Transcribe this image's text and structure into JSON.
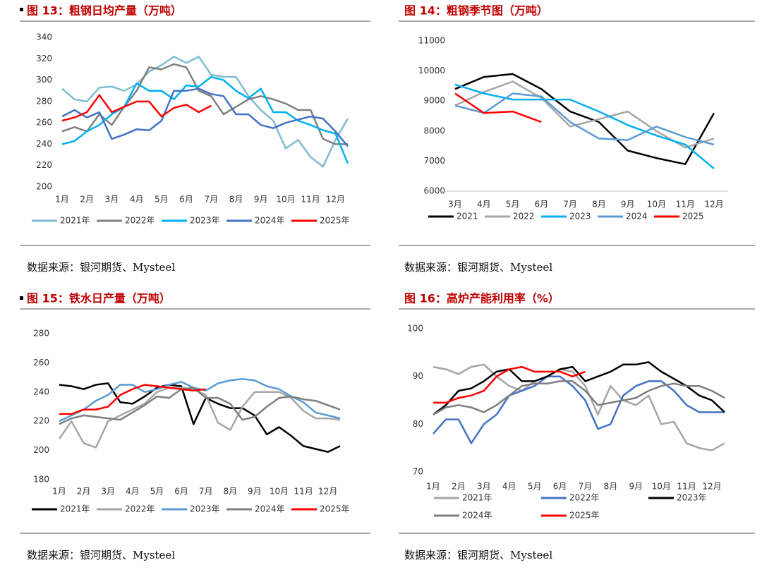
{
  "chart_data": [
    {
      "type": "line",
      "title": "图 13：粗钢日均产量（万吨）",
      "source": "数据来源：银河期货、Mysteel",
      "categories": [
        "1月",
        null,
        "2月",
        null,
        "3月",
        null,
        "4月",
        null,
        "5月",
        null,
        "6月",
        null,
        "7月",
        null,
        "8月",
        null,
        "9月",
        null,
        "10月",
        null,
        "11月",
        null,
        "12月",
        null
      ],
      "ylim": [
        200,
        340
      ],
      "yticks": [
        200,
        220,
        240,
        260,
        280,
        300,
        320,
        340
      ],
      "series": [
        {
          "name": "2021年",
          "color": "#7fbcd2",
          "values": [
            292,
            282,
            280,
            293,
            294,
            290,
            296,
            308,
            314,
            322,
            316,
            322,
            305,
            303,
            303,
            285,
            272,
            262,
            236,
            244,
            228,
            219,
            244,
            264
          ]
        },
        {
          "name": "2022年",
          "color": "#808080",
          "values": [
            252,
            256,
            252,
            268,
            258,
            275,
            290,
            312,
            310,
            315,
            312,
            290,
            285,
            268,
            275,
            282,
            285,
            282,
            278,
            272,
            272,
            245,
            240,
            240
          ]
        },
        {
          "name": "2023年",
          "color": "#00b0f0",
          "values": [
            240,
            243,
            252,
            258,
            268,
            275,
            297,
            290,
            290,
            282,
            295,
            294,
            303,
            300,
            290,
            283,
            292,
            270,
            270,
            262,
            258,
            253,
            250,
            222
          ]
        },
        {
          "name": "2024年",
          "color": "#4472c4",
          "values": [
            266,
            272,
            265,
            270,
            245,
            249,
            254,
            253,
            262,
            290,
            290,
            292,
            287,
            285,
            268,
            268,
            258,
            255,
            260,
            263,
            266,
            264,
            252,
            238
          ]
        },
        {
          "name": "2025年",
          "color": "#ff0000",
          "values": [
            262,
            265,
            270,
            286,
            270,
            275,
            280,
            280,
            266,
            274,
            277,
            270,
            276,
            null,
            null,
            null,
            null,
            null,
            null,
            null,
            null,
            null,
            null,
            null
          ]
        }
      ]
    },
    {
      "type": "line",
      "title": "图 14：粗钢季节图（万吨）",
      "source": "数据来源：银河期货、Mysteel",
      "categories": [
        "3月",
        "4月",
        "5月",
        "6月",
        "7月",
        "8月",
        "9月",
        "10月",
        "11月",
        "12月"
      ],
      "ylim": [
        6000,
        11000
      ],
      "yticks": [
        6000,
        7000,
        8000,
        9000,
        10000,
        11000
      ],
      "x_axis_line": true,
      "series": [
        {
          "name": "2021",
          "color": "#000000",
          "values": [
            9400,
            9800,
            9900,
            9400,
            8650,
            8300,
            7350,
            7100,
            6900,
            8600
          ]
        },
        {
          "name": "2022",
          "color": "#a6a6a6",
          "values": [
            8850,
            9300,
            9650,
            9100,
            8150,
            8400,
            8650,
            8000,
            7450,
            7750
          ]
        },
        {
          "name": "2023",
          "color": "#00b0f0",
          "values": [
            9550,
            9250,
            9050,
            9050,
            9050,
            8650,
            8200,
            7850,
            7550,
            6750
          ]
        },
        {
          "name": "2024",
          "color": "#5b9bd5",
          "values": [
            8850,
            8600,
            9250,
            9150,
            8300,
            7750,
            7700,
            8150,
            7800,
            7550
          ]
        },
        {
          "name": "2025",
          "color": "#ff0000",
          "values": [
            9250,
            8600,
            8650,
            8300,
            null,
            null,
            null,
            null,
            null,
            null
          ]
        }
      ]
    },
    {
      "type": "line",
      "title": "图 15：铁水日产量（万吨）",
      "source": "数据来源：银河期货、Mysteel",
      "categories": [
        "1月",
        null,
        "2月",
        null,
        "3月",
        null,
        "4月",
        null,
        "5月",
        null,
        "6月",
        null,
        "7月",
        null,
        "8月",
        null,
        "9月",
        null,
        "10月",
        null,
        "11月",
        null,
        "12月",
        null
      ],
      "ylim": [
        180,
        280
      ],
      "yticks": [
        180,
        200,
        220,
        240,
        260,
        280
      ],
      "series": [
        {
          "name": "2021年",
          "color": "#000000",
          "values": [
            245,
            244,
            242,
            245,
            246,
            233,
            232,
            237,
            243,
            245,
            244,
            218,
            236,
            232,
            229,
            229,
            224,
            211,
            216,
            210,
            203,
            201,
            199,
            203
          ]
        },
        {
          "name": "2022年",
          "color": "#a6a6a6",
          "values": [
            208,
            220,
            205,
            202,
            220,
            224,
            228,
            232,
            240,
            243,
            243,
            242,
            238,
            219,
            214,
            230,
            240,
            240,
            240,
            236,
            227,
            222,
            222,
            221
          ]
        },
        {
          "name": "2023年",
          "color": "#5b9bd5",
          "values": [
            220,
            224,
            228,
            234,
            238,
            245,
            245,
            240,
            242,
            245,
            247,
            243,
            241,
            246,
            248,
            249,
            248,
            244,
            242,
            237,
            233,
            226,
            224,
            222
          ]
        },
        {
          "name": "2024年",
          "color": "#7f7f7f",
          "values": [
            218,
            222,
            224,
            223,
            222,
            221,
            226,
            231,
            237,
            236,
            242,
            243,
            236,
            236,
            232,
            221,
            223,
            230,
            236,
            237,
            235,
            234,
            231,
            228
          ]
        },
        {
          "name": "2025年",
          "color": "#ff0000",
          "values": [
            225,
            225,
            228,
            228,
            230,
            238,
            242,
            245,
            244,
            243,
            242,
            241,
            242,
            null,
            null,
            null,
            null,
            null,
            null,
            null,
            null,
            null,
            null,
            null
          ]
        }
      ]
    },
    {
      "type": "line",
      "title": "图 16：高炉产能利用率（%）",
      "source": "数据来源：银河期货、Mysteel",
      "categories": [
        "1月",
        null,
        "2月",
        null,
        "3月",
        null,
        "4月",
        null,
        "5月",
        null,
        "6月",
        null,
        "7月",
        null,
        "8月",
        null,
        "9月",
        null,
        "10月",
        null,
        "11月",
        null,
        "12月",
        null
      ],
      "ylim": [
        70,
        100
      ],
      "yticks": [
        70,
        80,
        90,
        100
      ],
      "series": [
        {
          "name": "2021年",
          "color": "#a6a6a6",
          "values": [
            92,
            91.5,
            90.5,
            92,
            92.5,
            90,
            88,
            87,
            89,
            90,
            91.5,
            91,
            88,
            82,
            88,
            85,
            84,
            86,
            80,
            80.5,
            76,
            75,
            74.5,
            76
          ]
        },
        {
          "name": "2022年",
          "color": "#4472c4",
          "values": [
            78,
            81,
            81,
            76,
            80,
            82,
            86,
            87,
            88,
            90,
            90,
            88,
            85,
            79,
            80,
            86,
            88,
            89,
            89,
            87,
            84,
            82.5,
            82.5,
            82.5
          ]
        },
        {
          "name": "2023年",
          "color": "#000000",
          "values": [
            82,
            84,
            87,
            87.5,
            89,
            91,
            91.5,
            89,
            89,
            90,
            91.5,
            92,
            89,
            90,
            91,
            92.5,
            92.5,
            93,
            91,
            89.5,
            88,
            86,
            85,
            82.5
          ]
        },
        {
          "name": "2024年",
          "color": "#7f7f7f",
          "values": [
            82,
            83.5,
            84,
            83.5,
            82.5,
            84,
            86,
            88,
            88.5,
            88.5,
            89,
            89,
            87,
            84,
            84.5,
            85,
            85.5,
            87,
            88,
            88.5,
            88,
            88,
            87,
            85.5
          ]
        },
        {
          "name": "2025年",
          "color": "#ff0000",
          "values": [
            84.5,
            84.5,
            85.5,
            86,
            87,
            90,
            91.5,
            92,
            91,
            91,
            91,
            90,
            91,
            null,
            null,
            null,
            null,
            null,
            null,
            null,
            null,
            null,
            null,
            null
          ]
        }
      ]
    }
  ]
}
